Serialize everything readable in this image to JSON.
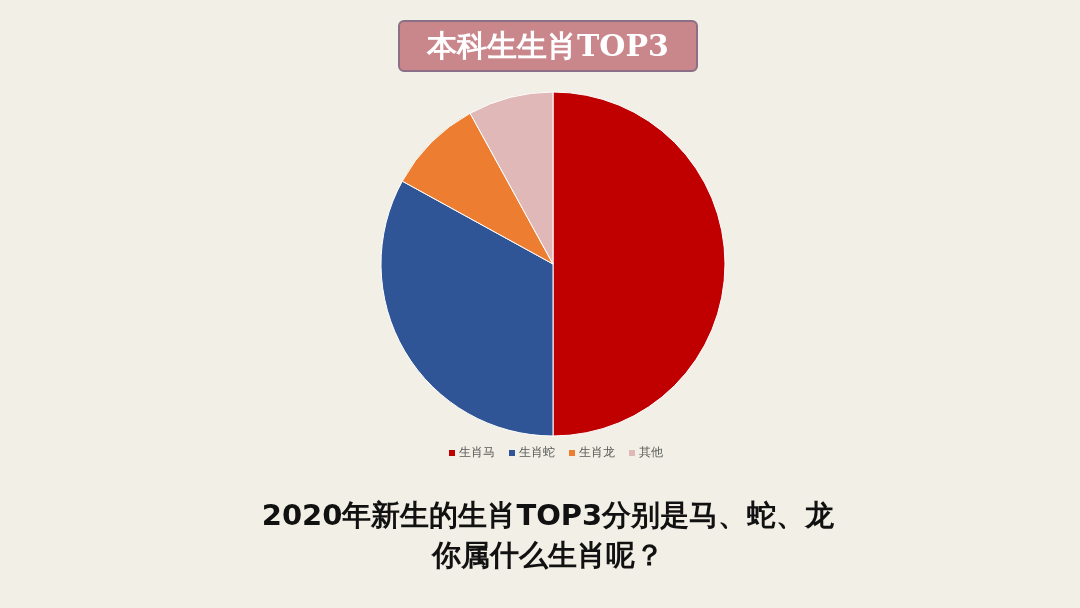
{
  "chart_data": {
    "type": "pie",
    "title": "本科生生肖TOP3",
    "categories": [
      "生肖马",
      "生肖蛇",
      "生肖龙",
      "其他"
    ],
    "values": [
      50,
      33,
      9,
      8
    ],
    "colors": [
      "#c00000",
      "#2f5597",
      "#ed7d31",
      "#e0b8b8"
    ],
    "legend": "bottom",
    "annotations": [
      "2020年新生的生肖TOP3分别是马、蛇、龙",
      "你属什么生肖呢？"
    ]
  }
}
